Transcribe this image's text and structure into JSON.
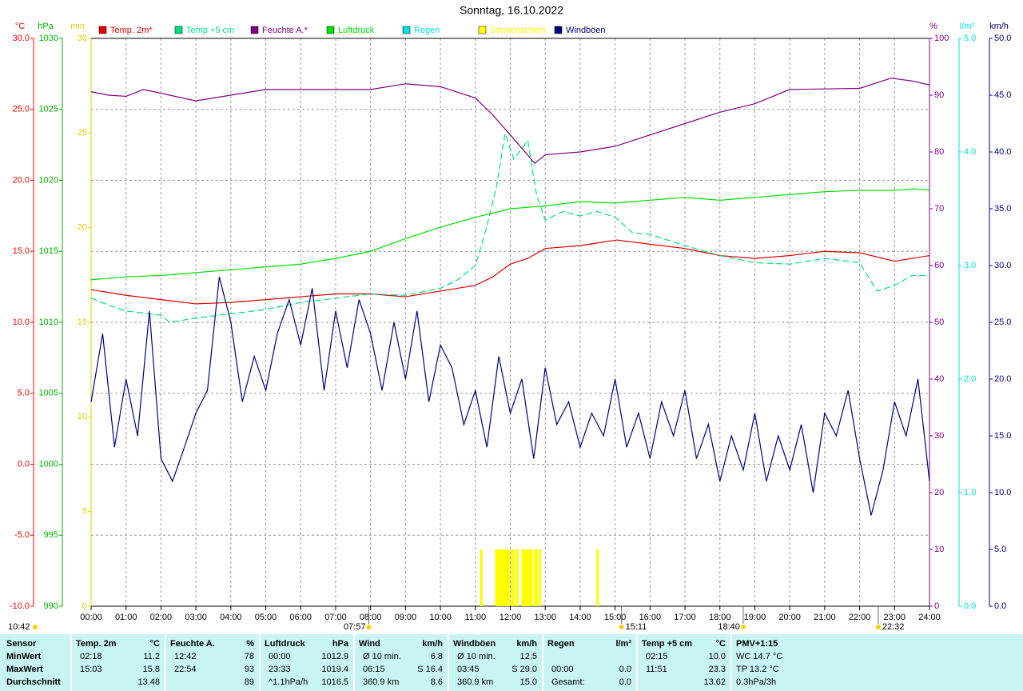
{
  "chart_data": {
    "type": "line",
    "title": "Sonntag, 16.10.2022",
    "generated": "10:42",
    "grid": true,
    "xlim": [
      0,
      24
    ],
    "xticks": [
      {
        "value": 0,
        "label": "00:00"
      },
      {
        "value": 1,
        "label": "01:00"
      },
      {
        "value": 2,
        "label": "02:00"
      },
      {
        "value": 3,
        "label": "03:00"
      },
      {
        "value": 4,
        "label": "04:00"
      },
      {
        "value": 5,
        "label": "05:00"
      },
      {
        "value": 6,
        "label": "06:00"
      },
      {
        "value": 7,
        "label": "07:00"
      },
      {
        "value": 8,
        "label": "08:00"
      },
      {
        "value": 9,
        "label": "09:00"
      },
      {
        "value": 10,
        "label": "10:00"
      },
      {
        "value": 11,
        "label": "11:00"
      },
      {
        "value": 12,
        "label": "12:00"
      },
      {
        "value": 13,
        "label": "13:00"
      },
      {
        "value": 14,
        "label": "14:00"
      },
      {
        "value": 15,
        "label": "15:00"
      },
      {
        "value": 16,
        "label": "16:00"
      },
      {
        "value": 17,
        "label": "17:00"
      },
      {
        "value": 18,
        "label": "18:00"
      },
      {
        "value": 19,
        "label": "19:00"
      },
      {
        "value": 20,
        "label": "20:00"
      },
      {
        "value": 21,
        "label": "21:00"
      },
      {
        "value": 22,
        "label": "22:00"
      },
      {
        "value": 23,
        "label": "23:00"
      },
      {
        "value": 24,
        "label": "24:00"
      }
    ],
    "axes": [
      {
        "unit": "°C",
        "color": "#ff0000",
        "side": "left",
        "lim": [
          -10,
          30
        ],
        "ticks": [
          {
            "value": -10,
            "label": "-10.0"
          },
          {
            "value": -5,
            "label": "-5.0"
          },
          {
            "value": 0,
            "label": "0.0"
          },
          {
            "value": 5,
            "label": "5.0"
          },
          {
            "value": 10,
            "label": "10.0"
          },
          {
            "value": 15,
            "label": "15.0"
          },
          {
            "value": 20,
            "label": "20.0"
          },
          {
            "value": 25,
            "label": "25.0"
          },
          {
            "value": 30,
            "label": "30.0"
          }
        ]
      },
      {
        "unit": "hPa",
        "color": "#00b000",
        "side": "left",
        "lim": [
          990,
          1030
        ],
        "ticks": [
          990,
          995,
          1000,
          1005,
          1010,
          1015,
          1020,
          1025,
          1030
        ]
      },
      {
        "unit": "min",
        "color": "#e0d000",
        "side": "left",
        "lim": [
          0,
          30
        ],
        "ticks": [
          0,
          5,
          10,
          15,
          20,
          25,
          30
        ]
      },
      {
        "unit": "%",
        "color": "#800080",
        "side": "right",
        "lim": [
          0,
          100
        ],
        "ticks": [
          0,
          10,
          20,
          30,
          40,
          50,
          60,
          70,
          80,
          90,
          100
        ]
      },
      {
        "unit": "l/m²",
        "color": "#00e0e0",
        "side": "right",
        "lim": [
          0,
          5
        ],
        "ticks": [
          {
            "value": 0,
            "label": "0.0"
          },
          {
            "value": 1,
            "label": "1.0"
          },
          {
            "value": 2,
            "label": "2.0"
          },
          {
            "value": 3,
            "label": "3.0"
          },
          {
            "value": 4,
            "label": "4.0"
          },
          {
            "value": 5,
            "label": "5.0"
          }
        ]
      },
      {
        "unit": "km/h",
        "color": "#000080",
        "side": "right",
        "lim": [
          0,
          50
        ],
        "ticks": [
          {
            "value": 0,
            "label": "0.0"
          },
          {
            "value": 5,
            "label": "5.0"
          },
          {
            "value": 10,
            "label": "10.0"
          },
          {
            "value": 15,
            "label": "15.0"
          },
          {
            "value": 20,
            "label": "20.0"
          },
          {
            "value": 25,
            "label": "25.0"
          },
          {
            "value": 30,
            "label": "30.0"
          },
          {
            "value": 35,
            "label": "35.0"
          },
          {
            "value": 40,
            "label": "40.0"
          },
          {
            "value": 45,
            "label": "45.0"
          },
          {
            "value": 50,
            "label": "50.0"
          }
        ]
      }
    ],
    "series": [
      {
        "name": "Temp. 2m*",
        "color": "#e00000",
        "axis": 0,
        "kind": "line",
        "x": [
          0,
          1,
          2,
          3,
          4,
          5,
          6,
          7,
          8,
          9,
          10,
          11,
          11.5,
          12,
          12.5,
          13,
          14,
          15.05,
          16,
          17,
          18,
          19,
          20,
          21,
          22,
          23,
          24
        ],
        "values": [
          12.3,
          11.9,
          11.6,
          11.3,
          11.4,
          11.6,
          11.8,
          12.0,
          12.0,
          11.8,
          12.2,
          12.6,
          13.2,
          14.1,
          14.5,
          15.2,
          15.4,
          15.8,
          15.5,
          15.2,
          14.7,
          14.5,
          14.7,
          15.0,
          14.9,
          14.3,
          14.7
        ]
      },
      {
        "name": "Temp +5 cm",
        "color": "#00e080",
        "axis": 0,
        "kind": "line",
        "dashed": true,
        "x": [
          0,
          0.5,
          1,
          2,
          2.25,
          3,
          4,
          5,
          6,
          7,
          8,
          9,
          10,
          10.5,
          11,
          11.3,
          11.6,
          11.85,
          12.1,
          12.5,
          12.75,
          13,
          13.5,
          14,
          14.5,
          15,
          15.5,
          16,
          17,
          18,
          19,
          20,
          21,
          22,
          22.5,
          23,
          23.5,
          24
        ],
        "values": [
          11.7,
          11.2,
          10.8,
          10.5,
          10.0,
          10.3,
          10.6,
          10.9,
          11.4,
          11.7,
          12.0,
          11.9,
          12.4,
          13.0,
          14.0,
          16.5,
          19.5,
          23.3,
          21.5,
          22.8,
          19.0,
          17.2,
          17.8,
          17.5,
          17.8,
          17.4,
          16.3,
          16.2,
          15.4,
          14.7,
          14.2,
          14.1,
          14.5,
          14.2,
          12.2,
          12.6,
          13.3,
          13.3
        ]
      },
      {
        "name": "Feuchte A.*",
        "color": "#800080",
        "axis": 3,
        "kind": "line",
        "x": [
          0,
          0.5,
          1,
          1.5,
          3,
          4,
          5,
          8,
          9,
          10,
          11,
          11.5,
          12,
          12.7,
          13,
          14,
          15,
          16,
          17,
          18,
          19,
          20,
          22,
          22.9,
          23.5,
          24
        ],
        "values": [
          90.6,
          90,
          89.8,
          91,
          89,
          90,
          91,
          91,
          92,
          91.5,
          89.5,
          86.5,
          83,
          78,
          79.5,
          80,
          81,
          83,
          85,
          87,
          88.5,
          91,
          91.2,
          93,
          92.5,
          91.8
        ]
      },
      {
        "name": "Luftdruck",
        "color": "#00e000",
        "axis": 1,
        "kind": "line",
        "x": [
          0,
          1,
          2,
          3,
          4,
          5,
          6,
          7,
          8,
          9,
          10,
          11,
          12,
          13,
          14,
          15,
          16,
          17,
          18,
          19,
          20,
          21,
          22,
          23,
          23.55,
          24
        ],
        "values": [
          1013.0,
          1013.2,
          1013.3,
          1013.5,
          1013.7,
          1013.9,
          1014.1,
          1014.5,
          1015.0,
          1015.9,
          1016.7,
          1017.4,
          1018.0,
          1018.2,
          1018.5,
          1018.4,
          1018.6,
          1018.8,
          1018.6,
          1018.8,
          1019.0,
          1019.2,
          1019.3,
          1019.3,
          1019.4,
          1019.3
        ]
      },
      {
        "name": "Regen",
        "color": "#00e0e0",
        "axis": 4,
        "kind": "bar",
        "x": [],
        "values": []
      },
      {
        "name": "Sonnenschein",
        "color": "#ffff00",
        "axis": 2,
        "kind": "bar",
        "x": [
          11.17,
          11.6,
          11.65,
          11.7,
          11.75,
          11.8,
          11.85,
          11.9,
          11.95,
          12.05,
          12.1,
          12.2,
          12.35,
          12.4,
          12.45,
          12.5,
          12.55,
          12.6,
          12.7,
          12.75,
          12.85,
          14.5
        ],
        "values": [
          3,
          3,
          3,
          3,
          3,
          3,
          3,
          3,
          3,
          3,
          3,
          3,
          3,
          3,
          3,
          3,
          3,
          3,
          3,
          3,
          3,
          3
        ]
      },
      {
        "name": "Windböen",
        "color": "#000080",
        "axis": 5,
        "kind": "line",
        "x": [
          0,
          0.33,
          0.67,
          1,
          1.33,
          1.67,
          2,
          2.33,
          2.67,
          3,
          3.33,
          3.67,
          4,
          4.33,
          4.67,
          5,
          5.33,
          5.67,
          6,
          6.33,
          6.67,
          7,
          7.33,
          7.67,
          8,
          8.33,
          8.67,
          9,
          9.33,
          9.67,
          10,
          10.33,
          10.67,
          11,
          11.33,
          11.67,
          12,
          12.33,
          12.67,
          13,
          13.33,
          13.67,
          14,
          14.33,
          14.67,
          15,
          15.33,
          15.67,
          16,
          16.33,
          16.67,
          17,
          17.33,
          17.67,
          18,
          18.33,
          18.67,
          19,
          19.33,
          19.67,
          20,
          20.33,
          20.67,
          21,
          21.33,
          21.67,
          22,
          22.33,
          22.67,
          23,
          23.33,
          23.67,
          24
        ],
        "values": [
          18,
          24,
          14,
          20,
          15,
          26,
          13,
          11,
          14,
          17,
          19,
          29,
          25,
          18,
          22,
          19,
          24,
          27,
          23,
          28,
          19,
          26,
          21,
          27,
          24,
          19,
          25,
          20,
          26,
          18,
          23,
          21,
          16,
          19,
          14,
          22,
          17,
          20,
          13,
          21,
          16,
          18,
          14,
          17,
          15,
          20,
          14,
          17,
          13,
          18,
          15,
          19,
          13,
          16,
          11,
          15,
          12,
          17,
          11,
          15,
          12,
          16,
          10,
          17,
          15,
          19,
          13,
          8,
          12,
          18,
          15,
          20,
          11
        ]
      }
    ],
    "markers": [
      "07:57",
      "15:11",
      "18:40",
      "22:32"
    ]
  },
  "stats": {
    "sensor_label": "Sensor",
    "pmv_title": "PMV+1:15",
    "columns": [
      {
        "title": "Temp. 2m",
        "unit": "°C"
      },
      {
        "title": "Feuchte A.",
        "unit": "%"
      },
      {
        "title": "Luftdruck",
        "unit": "hPa"
      },
      {
        "title": "Wind",
        "unit": "km/h"
      },
      {
        "title": "Windböen",
        "unit": "km/h"
      },
      {
        "title": "Regen",
        "unit": "l/m²"
      },
      {
        "title": "Temp +5 cm",
        "unit": "°C"
      }
    ],
    "rows": [
      {
        "label": "MinWert",
        "cells": [
          [
            "02:18",
            "11.2"
          ],
          [
            "12:42",
            "78"
          ],
          [
            "00:00",
            "1012.9"
          ],
          [
            "Ø 10 min.",
            "6.8"
          ],
          [
            "Ø 10 min.",
            "12.5"
          ],
          [
            null,
            null
          ],
          [
            "02:15",
            "10.0"
          ]
        ],
        "pmv": "WC 14.7 °C"
      },
      {
        "label": "MaxWert",
        "cells": [
          [
            "15:03",
            "15.8"
          ],
          [
            "22:54",
            "93"
          ],
          [
            "23:33",
            "1019.4"
          ],
          [
            "06:15",
            "S 16.4"
          ],
          [
            "03:45",
            "S 29.0"
          ],
          [
            "00:00",
            "0.0"
          ],
          [
            "11:51",
            "23.3"
          ]
        ],
        "pmv": "TP 13.2 °C"
      },
      {
        "label": "Durchschnitt",
        "cells": [
          [
            null,
            "13.48"
          ],
          [
            null,
            "89"
          ],
          [
            "^1.1hPa/h",
            "1016.5"
          ],
          [
            "360.9 km",
            "8.6"
          ],
          [
            "360.9 km",
            "15.0"
          ],
          [
            "Gesamt:",
            "0.0"
          ],
          [
            null,
            "13.62"
          ]
        ],
        "pmv": "0.3hPa/3h"
      }
    ]
  }
}
